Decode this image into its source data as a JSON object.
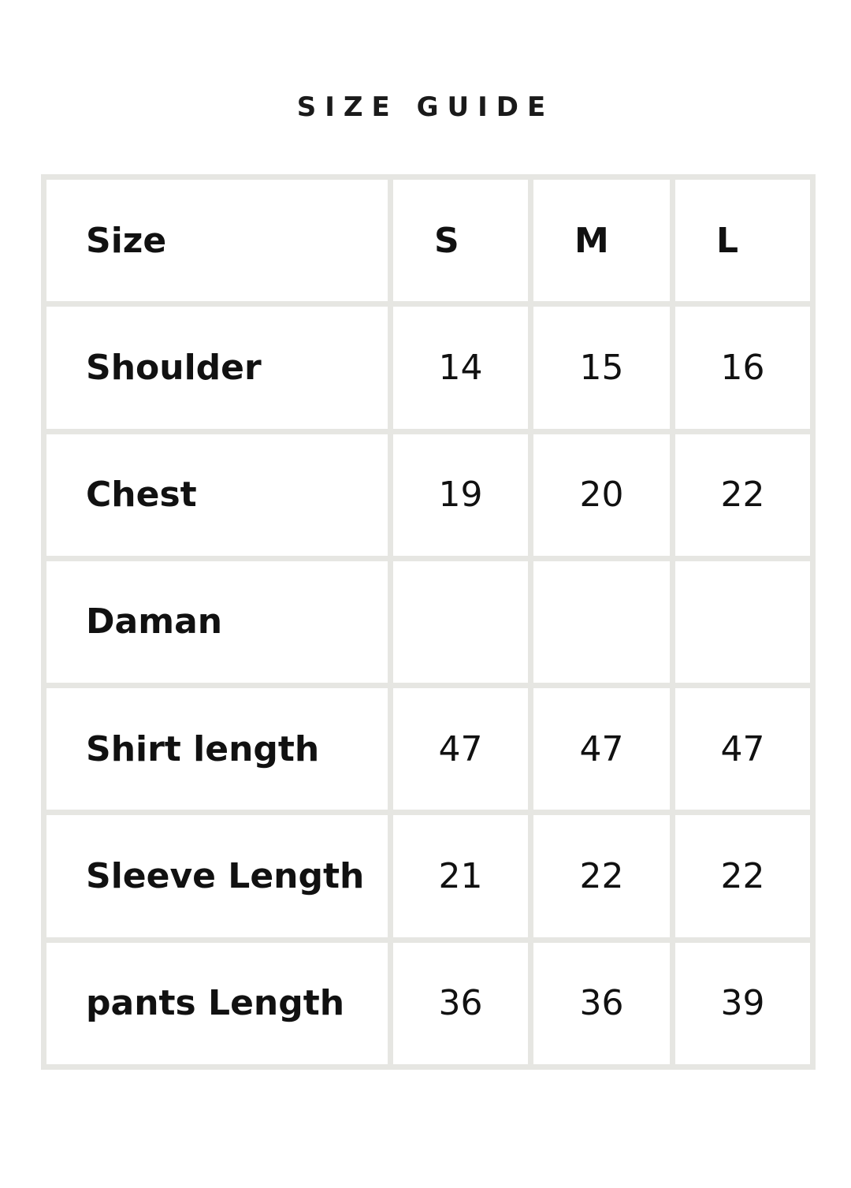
{
  "title": "SIZE GUIDE",
  "table": {
    "header": {
      "label": "Size",
      "sizes": [
        "S",
        "M",
        "L"
      ]
    },
    "rows": [
      {
        "label": "Shoulder",
        "values": [
          "14",
          "15",
          "16"
        ]
      },
      {
        "label": "Chest",
        "values": [
          "19",
          "20",
          "22"
        ]
      },
      {
        "label": "Daman",
        "values": [
          "",
          "",
          ""
        ]
      },
      {
        "label": "Shirt length",
        "values": [
          "47",
          "47",
          "47"
        ]
      },
      {
        "label": "Sleeve Length",
        "values": [
          "21",
          "22",
          "22"
        ]
      },
      {
        "label": "pants Length",
        "values": [
          "36",
          "36",
          "39"
        ]
      }
    ]
  }
}
